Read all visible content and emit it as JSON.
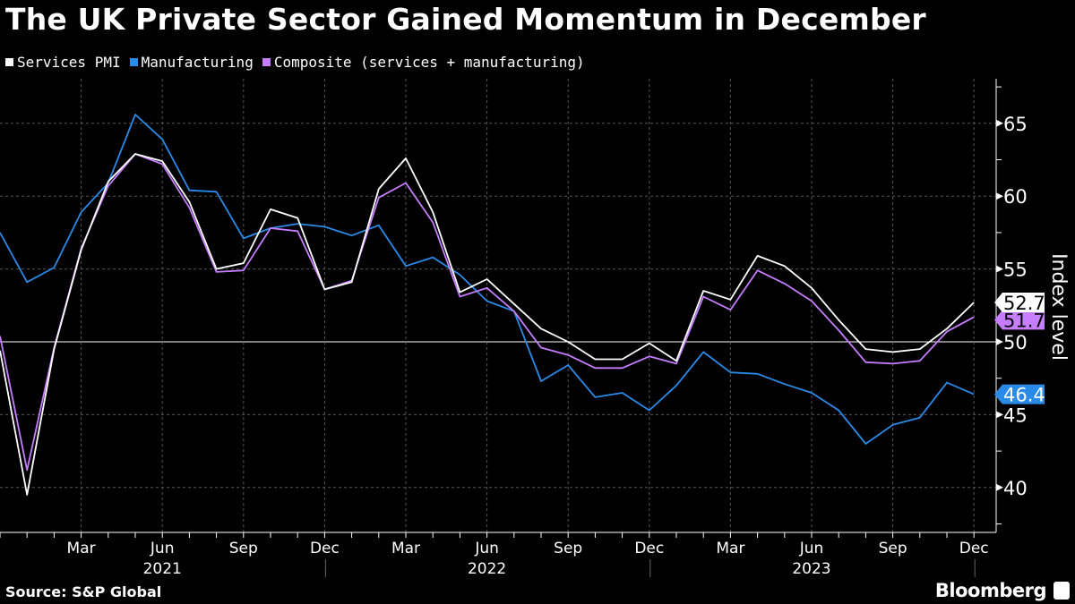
{
  "chart_data": {
    "type": "line",
    "title": "The UK Private Sector Gained Momentum in December",
    "ylabel": "Index level",
    "xlabel": "",
    "ylim": [
      37.5,
      68
    ],
    "yticks": [
      40,
      45,
      50,
      55,
      60,
      65
    ],
    "reference_line": 50,
    "grid": true,
    "legend_position": "top-left",
    "x_start": "2020-12",
    "x": [
      "2020-12",
      "2021-01",
      "2021-02",
      "2021-03",
      "2021-04",
      "2021-05",
      "2021-06",
      "2021-07",
      "2021-08",
      "2021-09",
      "2021-10",
      "2021-11",
      "2021-12",
      "2022-01",
      "2022-02",
      "2022-03",
      "2022-04",
      "2022-05",
      "2022-06",
      "2022-07",
      "2022-08",
      "2022-09",
      "2022-10",
      "2022-11",
      "2022-12",
      "2023-01",
      "2023-02",
      "2023-03",
      "2023-04",
      "2023-05",
      "2023-06",
      "2023-07",
      "2023-08",
      "2023-09",
      "2023-10",
      "2023-11",
      "2023-12"
    ],
    "xtick_labels": [
      {
        "month": "2021-03",
        "label": "Mar"
      },
      {
        "month": "2021-06",
        "label": "Jun"
      },
      {
        "month": "2021-09",
        "label": "Sep"
      },
      {
        "month": "2021-12",
        "label": "Dec"
      },
      {
        "month": "2022-03",
        "label": "Mar"
      },
      {
        "month": "2022-06",
        "label": "Jun"
      },
      {
        "month": "2022-09",
        "label": "Sep"
      },
      {
        "month": "2022-12",
        "label": "Dec"
      },
      {
        "month": "2023-03",
        "label": "Mar"
      },
      {
        "month": "2023-06",
        "label": "Jun"
      },
      {
        "month": "2023-09",
        "label": "Sep"
      },
      {
        "month": "2023-12",
        "label": "Dec"
      }
    ],
    "year_labels": [
      {
        "month": "2021-06",
        "label": "2021"
      },
      {
        "month": "2022-06",
        "label": "2022"
      },
      {
        "month": "2023-06",
        "label": "2023"
      }
    ],
    "series": [
      {
        "name": "Services PMI",
        "color": "#ffffff",
        "last_label": "52.7",
        "label_text_color": "#000000",
        "values": [
          49.4,
          39.5,
          49.5,
          56.3,
          61.0,
          62.9,
          62.4,
          59.6,
          55.0,
          55.4,
          59.1,
          58.5,
          53.6,
          54.1,
          60.5,
          62.6,
          58.9,
          53.4,
          54.3,
          52.6,
          50.9,
          50.0,
          48.8,
          48.8,
          49.9,
          48.7,
          53.5,
          52.9,
          55.9,
          55.2,
          53.7,
          51.5,
          49.5,
          49.3,
          49.5,
          50.9,
          52.7
        ]
      },
      {
        "name": "Manufacturing",
        "color": "#2a8ae8",
        "last_label": "46.4",
        "label_text_color": "#ffffff",
        "values": [
          57.5,
          54.1,
          55.1,
          58.9,
          60.9,
          65.6,
          63.9,
          60.4,
          60.3,
          57.1,
          57.8,
          58.1,
          57.9,
          57.3,
          58.0,
          55.2,
          55.8,
          54.6,
          52.8,
          52.1,
          47.3,
          48.4,
          46.2,
          46.5,
          45.3,
          47.0,
          49.3,
          47.9,
          47.8,
          47.1,
          46.5,
          45.3,
          43.0,
          44.3,
          44.8,
          47.2,
          46.4
        ]
      },
      {
        "name": "Composite (services + manufacturing)",
        "color": "#c77dff",
        "last_label": "51.7",
        "label_text_color": "#000000",
        "values": [
          50.4,
          41.2,
          49.6,
          56.4,
          60.7,
          62.9,
          62.2,
          59.2,
          54.8,
          54.9,
          57.8,
          57.6,
          53.6,
          54.2,
          59.9,
          60.9,
          58.2,
          53.1,
          53.7,
          52.1,
          49.6,
          49.1,
          48.2,
          48.2,
          49.0,
          48.5,
          53.1,
          52.2,
          54.9,
          54.0,
          52.8,
          50.8,
          48.6,
          48.5,
          48.7,
          50.7,
          51.7
        ]
      }
    ]
  },
  "footer": {
    "source": "Source: S&P Global",
    "brand": "Bloomberg"
  }
}
